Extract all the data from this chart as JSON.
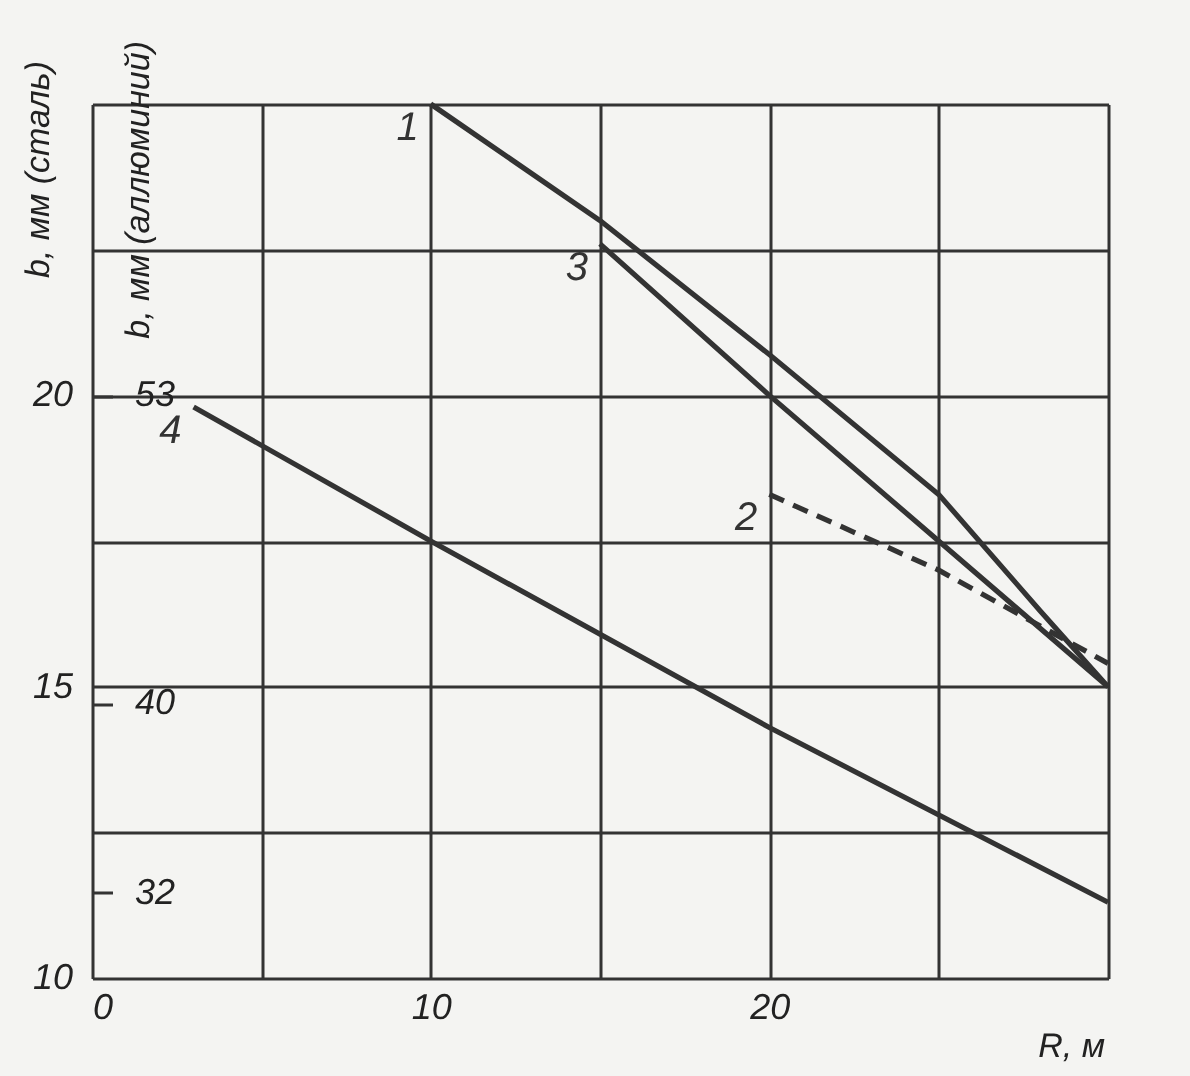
{
  "chart_data": {
    "type": "line",
    "xlabel": "R, м",
    "ylabel": "b, мм (сталь)",
    "y2label": "b, мм (аллюминий)",
    "xlim": [
      0,
      30
    ],
    "xticks": [
      0,
      {
        "value": 5,
        "label": null
      },
      10,
      {
        "value": 15,
        "label": null
      },
      20,
      {
        "value": 25,
        "label": null
      },
      {
        "value": 30,
        "label": null
      }
    ],
    "ylim": [
      10,
      25
    ],
    "yticks": [
      10,
      {
        "value": 12.5,
        "label": null
      },
      15,
      {
        "value": 17.5,
        "label": null
      },
      20,
      {
        "value": 22.5,
        "label": null
      },
      {
        "value": 25,
        "label": null
      }
    ],
    "y2lim": [
      28.4,
      65.3
    ],
    "y2ticks": [
      32,
      40,
      53
    ],
    "grid": true,
    "marker": "none",
    "series": [
      {
        "name": "1",
        "color": "#333333",
        "line_style": "solid",
        "x": [
          10,
          15,
          20,
          25,
          28,
          30
        ],
        "values": [
          25,
          23.0,
          20.7,
          18.3,
          16.3,
          15
        ]
      },
      {
        "name": "2",
        "color": "#333333",
        "line_style": "dashed",
        "x": [
          20,
          25,
          30
        ],
        "values": [
          18.3,
          17.0,
          15.4
        ]
      },
      {
        "name": "3",
        "color": "#333333",
        "line_style": "solid",
        "x": [
          15,
          20,
          25,
          30
        ],
        "values": [
          22.6,
          20.0,
          17.5,
          15
        ]
      },
      {
        "name": "4",
        "color": "#333333",
        "line_style": "solid",
        "x": [
          3,
          10,
          20,
          30
        ],
        "values": [
          19.8,
          17.5,
          14.3,
          11.3
        ]
      }
    ]
  }
}
